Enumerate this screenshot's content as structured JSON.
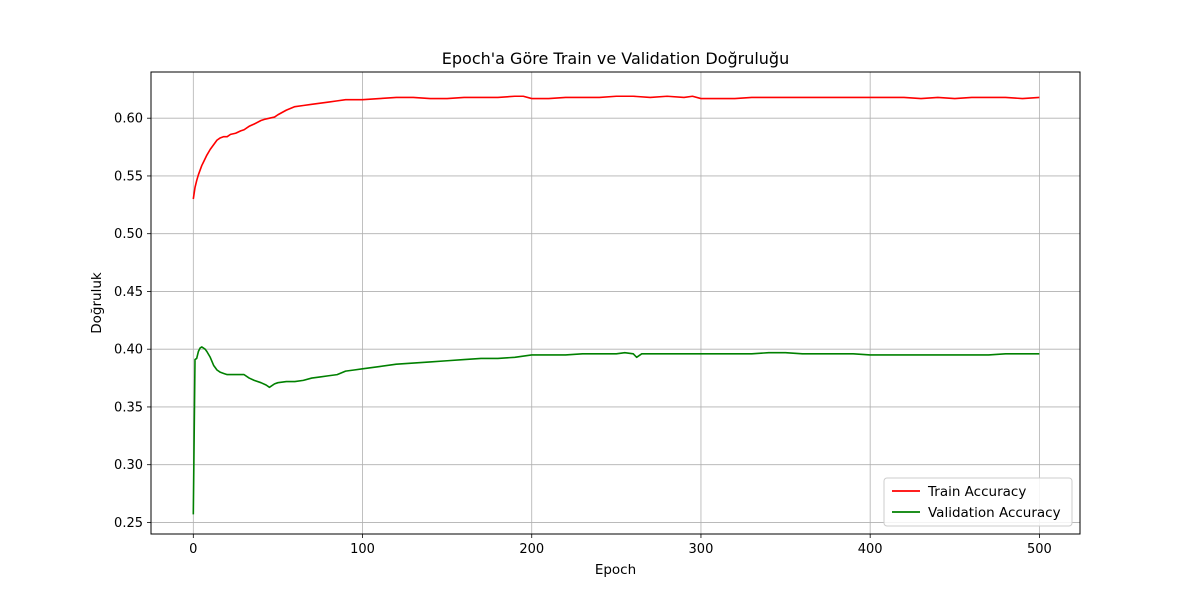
{
  "chart_data": {
    "type": "line",
    "title": "Epoch'a Göre Train ve Validation Doğruluğu",
    "xlabel": "Epoch",
    "ylabel": "Doğruluk",
    "xlim": [
      -25,
      524
    ],
    "ylim": [
      0.24,
      0.64
    ],
    "xticks": [
      0,
      100,
      200,
      300,
      400,
      500
    ],
    "yticks": [
      0.25,
      0.3,
      0.35,
      0.4,
      0.45,
      0.5,
      0.55,
      0.6
    ],
    "grid": true,
    "legend_position": "bottom-right",
    "series": [
      {
        "name": "Train Accuracy",
        "color": "#ff0000",
        "x": [
          0,
          1,
          2,
          3,
          4,
          5,
          6,
          7,
          8,
          10,
          12,
          14,
          16,
          18,
          20,
          22,
          25,
          28,
          30,
          33,
          36,
          40,
          42,
          45,
          48,
          50,
          55,
          60,
          65,
          70,
          75,
          80,
          85,
          90,
          95,
          100,
          110,
          120,
          130,
          140,
          150,
          160,
          170,
          180,
          190,
          195,
          200,
          210,
          220,
          230,
          240,
          250,
          260,
          270,
          280,
          290,
          295,
          300,
          310,
          320,
          330,
          340,
          350,
          360,
          370,
          380,
          390,
          400,
          410,
          420,
          430,
          440,
          450,
          460,
          470,
          480,
          490,
          500
        ],
        "values": [
          0.53,
          0.54,
          0.546,
          0.551,
          0.555,
          0.559,
          0.562,
          0.565,
          0.568,
          0.573,
          0.577,
          0.581,
          0.583,
          0.584,
          0.584,
          0.586,
          0.587,
          0.589,
          0.59,
          0.593,
          0.595,
          0.598,
          0.599,
          0.6,
          0.601,
          0.603,
          0.607,
          0.61,
          0.611,
          0.612,
          0.613,
          0.614,
          0.615,
          0.616,
          0.616,
          0.616,
          0.617,
          0.618,
          0.618,
          0.617,
          0.617,
          0.618,
          0.618,
          0.618,
          0.619,
          0.619,
          0.617,
          0.617,
          0.618,
          0.618,
          0.618,
          0.619,
          0.619,
          0.618,
          0.619,
          0.618,
          0.619,
          0.617,
          0.617,
          0.617,
          0.618,
          0.618,
          0.618,
          0.618,
          0.618,
          0.618,
          0.618,
          0.618,
          0.618,
          0.618,
          0.617,
          0.618,
          0.617,
          0.618,
          0.618,
          0.618,
          0.617,
          0.618
        ]
      },
      {
        "name": "Validation Accuracy",
        "color": "#008000",
        "x": [
          0,
          1,
          2,
          3,
          4,
          5,
          6,
          7,
          8,
          10,
          12,
          14,
          16,
          18,
          20,
          25,
          30,
          33,
          36,
          40,
          43,
          45,
          48,
          50,
          55,
          60,
          65,
          70,
          75,
          80,
          85,
          90,
          95,
          100,
          105,
          110,
          120,
          130,
          140,
          150,
          160,
          170,
          180,
          190,
          200,
          210,
          220,
          230,
          240,
          250,
          255,
          260,
          262,
          265,
          270,
          280,
          290,
          300,
          310,
          320,
          330,
          340,
          350,
          360,
          370,
          380,
          390,
          400,
          410,
          420,
          430,
          440,
          450,
          460,
          470,
          480,
          490,
          500
        ],
        "values": [
          0.257,
          0.391,
          0.392,
          0.398,
          0.401,
          0.402,
          0.401,
          0.4,
          0.398,
          0.393,
          0.386,
          0.382,
          0.38,
          0.379,
          0.378,
          0.378,
          0.378,
          0.375,
          0.373,
          0.371,
          0.369,
          0.367,
          0.37,
          0.371,
          0.372,
          0.372,
          0.373,
          0.375,
          0.376,
          0.377,
          0.378,
          0.381,
          0.382,
          0.383,
          0.384,
          0.385,
          0.387,
          0.388,
          0.389,
          0.39,
          0.391,
          0.392,
          0.392,
          0.393,
          0.395,
          0.395,
          0.395,
          0.396,
          0.396,
          0.396,
          0.397,
          0.396,
          0.393,
          0.396,
          0.396,
          0.396,
          0.396,
          0.396,
          0.396,
          0.396,
          0.396,
          0.397,
          0.397,
          0.396,
          0.396,
          0.396,
          0.396,
          0.395,
          0.395,
          0.395,
          0.395,
          0.395,
          0.395,
          0.395,
          0.395,
          0.396,
          0.396,
          0.396
        ]
      }
    ]
  }
}
